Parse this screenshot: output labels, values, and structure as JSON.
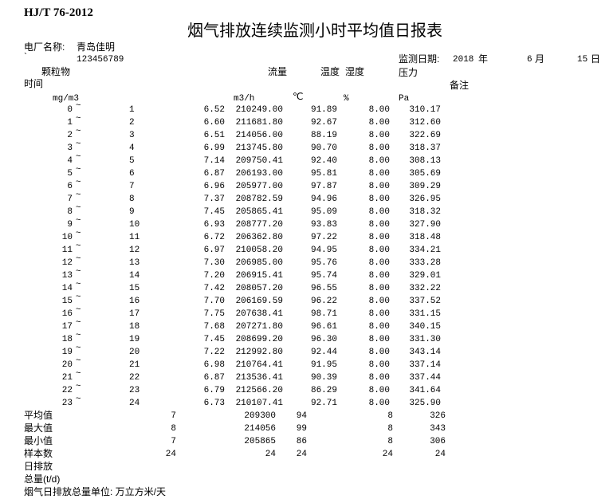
{
  "standard": "HJ/T 76-2012",
  "title": "烟气排放连续监测小时平均值日报表",
  "plant_label": "电厂名称:",
  "plant_name": "青岛佳明",
  "backtick": "`",
  "plant_code": "123456789",
  "date_label": "监测日期:",
  "year": "2018",
  "year_unit": "年",
  "month": "6",
  "month_unit": "月",
  "day": "15",
  "day_unit": "日",
  "headers": {
    "time": "时间",
    "pm": "颗粒物",
    "flow": "流量",
    "temp": "温度",
    "humidity": "湿度",
    "pressure": "压力",
    "remark": "备注",
    "pm_unit": "mg/m3",
    "flow_unit": "m3/h",
    "temp_unit": "℃",
    "humidity_unit": "%",
    "pressure_unit": "Pa",
    "range_sep": "~"
  },
  "rows": [
    {
      "start": "0",
      "end": "1",
      "pm": "6.52",
      "flow": "210249.00",
      "temp": "91.89",
      "hum": "8.00",
      "pres": "310.17"
    },
    {
      "start": "1",
      "end": "2",
      "pm": "6.60",
      "flow": "211681.80",
      "temp": "92.67",
      "hum": "8.00",
      "pres": "312.60"
    },
    {
      "start": "2",
      "end": "3",
      "pm": "6.51",
      "flow": "214056.00",
      "temp": "88.19",
      "hum": "8.00",
      "pres": "322.69"
    },
    {
      "start": "3",
      "end": "4",
      "pm": "6.99",
      "flow": "213745.80",
      "temp": "90.70",
      "hum": "8.00",
      "pres": "318.37"
    },
    {
      "start": "4",
      "end": "5",
      "pm": "7.14",
      "flow": "209750.41",
      "temp": "92.40",
      "hum": "8.00",
      "pres": "308.13"
    },
    {
      "start": "5",
      "end": "6",
      "pm": "6.87",
      "flow": "206193.00",
      "temp": "95.81",
      "hum": "8.00",
      "pres": "305.69"
    },
    {
      "start": "6",
      "end": "7",
      "pm": "6.96",
      "flow": "205977.00",
      "temp": "97.87",
      "hum": "8.00",
      "pres": "309.29"
    },
    {
      "start": "7",
      "end": "8",
      "pm": "7.37",
      "flow": "208782.59",
      "temp": "94.96",
      "hum": "8.00",
      "pres": "326.95"
    },
    {
      "start": "8",
      "end": "9",
      "pm": "7.45",
      "flow": "205865.41",
      "temp": "95.09",
      "hum": "8.00",
      "pres": "318.32"
    },
    {
      "start": "9",
      "end": "10",
      "pm": "6.93",
      "flow": "208777.20",
      "temp": "93.83",
      "hum": "8.00",
      "pres": "327.90"
    },
    {
      "start": "10",
      "end": "11",
      "pm": "6.72",
      "flow": "206362.80",
      "temp": "97.22",
      "hum": "8.00",
      "pres": "318.48"
    },
    {
      "start": "11",
      "end": "12",
      "pm": "6.97",
      "flow": "210058.20",
      "temp": "94.95",
      "hum": "8.00",
      "pres": "334.21"
    },
    {
      "start": "12",
      "end": "13",
      "pm": "7.30",
      "flow": "206985.00",
      "temp": "95.76",
      "hum": "8.00",
      "pres": "333.28"
    },
    {
      "start": "13",
      "end": "14",
      "pm": "7.20",
      "flow": "206915.41",
      "temp": "95.74",
      "hum": "8.00",
      "pres": "329.01"
    },
    {
      "start": "14",
      "end": "15",
      "pm": "7.42",
      "flow": "208057.20",
      "temp": "96.55",
      "hum": "8.00",
      "pres": "332.22"
    },
    {
      "start": "15",
      "end": "16",
      "pm": "7.70",
      "flow": "206169.59",
      "temp": "96.22",
      "hum": "8.00",
      "pres": "337.52"
    },
    {
      "start": "16",
      "end": "17",
      "pm": "7.75",
      "flow": "207638.41",
      "temp": "98.71",
      "hum": "8.00",
      "pres": "331.15"
    },
    {
      "start": "17",
      "end": "18",
      "pm": "7.68",
      "flow": "207271.80",
      "temp": "96.61",
      "hum": "8.00",
      "pres": "340.15"
    },
    {
      "start": "18",
      "end": "19",
      "pm": "7.45",
      "flow": "208699.20",
      "temp": "96.30",
      "hum": "8.00",
      "pres": "331.30"
    },
    {
      "start": "19",
      "end": "20",
      "pm": "7.22",
      "flow": "212992.80",
      "temp": "92.44",
      "hum": "8.00",
      "pres": "343.14"
    },
    {
      "start": "20",
      "end": "21",
      "pm": "6.98",
      "flow": "210764.41",
      "temp": "91.95",
      "hum": "8.00",
      "pres": "337.14"
    },
    {
      "start": "21",
      "end": "22",
      "pm": "6.87",
      "flow": "213536.41",
      "temp": "90.39",
      "hum": "8.00",
      "pres": "337.44"
    },
    {
      "start": "22",
      "end": "23",
      "pm": "6.79",
      "flow": "212566.20",
      "temp": "86.29",
      "hum": "8.00",
      "pres": "341.64"
    },
    {
      "start": "23",
      "end": "24",
      "pm": "6.73",
      "flow": "210107.41",
      "temp": "92.71",
      "hum": "8.00",
      "pres": "325.90"
    }
  ],
  "summary": [
    {
      "label": "平均值",
      "pm": "7",
      "flow": "209300",
      "temp": "94",
      "hum": "8",
      "pres": "326"
    },
    {
      "label": "最大值",
      "pm": "8",
      "flow": "214056",
      "temp": "99",
      "hum": "8",
      "pres": "343"
    },
    {
      "label": "最小值",
      "pm": "7",
      "flow": "205865",
      "temp": "86",
      "hum": "8",
      "pres": "306"
    },
    {
      "label": "样本数",
      "pm": "24",
      "flow": "24",
      "temp": "24",
      "hum": "24",
      "pres": "24"
    }
  ],
  "daily_emission_label": "日排放",
  "total_label": "总量(t/d)",
  "footer_note": "烟气日排放总量单位: 万立方米/天"
}
